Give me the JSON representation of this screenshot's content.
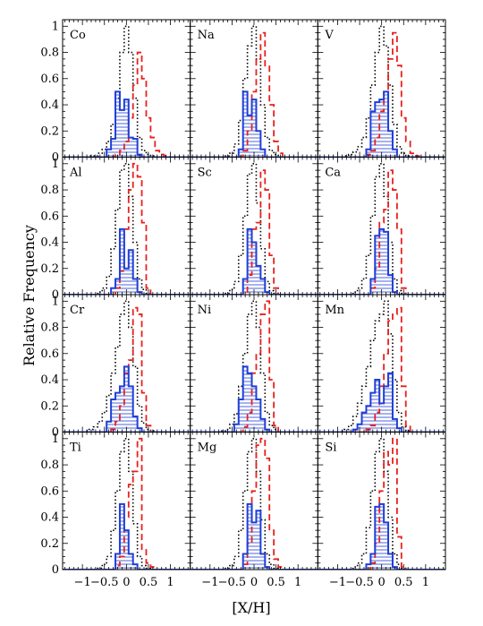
{
  "figure": {
    "ylabel": "Relative Frequency",
    "xlabel": "[X/H]"
  },
  "colors": {
    "dotted": "#000000",
    "dashed": "#e8201c",
    "solid": "#1f3fd6",
    "hatch": "#1f3fd6",
    "frame": "#000000"
  },
  "chart_data": {
    "type": "histogram-grid",
    "rows": 4,
    "cols": 3,
    "xlim": [
      -1.45,
      1.45
    ],
    "ylim": [
      0,
      1.05
    ],
    "x_ticks": [
      -1,
      -0.5,
      0,
      0.5,
      1
    ],
    "x_tick_labels": [
      "−1",
      "−0.5",
      "0",
      "0.5",
      "1"
    ],
    "y_ticks": [
      0,
      0.2,
      0.4,
      0.6,
      0.8,
      1
    ],
    "y_tick_labels": [
      "0",
      "0.2",
      "0.4",
      "0.6",
      "0.8",
      "1"
    ],
    "bin_edges": [
      -1.45,
      -1.35,
      -1.25,
      -1.15,
      -1.05,
      -0.95,
      -0.85,
      -0.75,
      -0.65,
      -0.55,
      -0.45,
      -0.35,
      -0.25,
      -0.15,
      -0.05,
      0.05,
      0.15,
      0.25,
      0.35,
      0.45,
      0.55,
      0.65,
      0.75,
      0.85,
      0.95,
      1.05,
      1.15,
      1.25,
      1.35,
      1.45
    ],
    "panels": [
      {
        "label": "Co",
        "dotted": [
          0,
          0,
          0,
          0,
          0,
          0,
          0.01,
          0.01,
          0.03,
          0.06,
          0.12,
          0.25,
          0.45,
          0.8,
          1.0,
          0.8,
          0.45,
          0.15,
          0.05,
          0.02,
          0.01,
          0,
          0,
          0,
          0,
          0,
          0,
          0,
          0
        ],
        "dashed": [
          0,
          0,
          0,
          0,
          0,
          0,
          0,
          0,
          0,
          0,
          0,
          0,
          0.02,
          0.05,
          0.12,
          0.3,
          0.55,
          0.8,
          0.6,
          0.3,
          0.15,
          0.05,
          0.02,
          0.01,
          0,
          0,
          0,
          0,
          0
        ],
        "solid": [
          0,
          0,
          0,
          0,
          0,
          0,
          0,
          0,
          0,
          0,
          0.06,
          0.14,
          0.5,
          0.36,
          0.44,
          0.15,
          0.14,
          0.02,
          0,
          0,
          0,
          0,
          0,
          0,
          0,
          0,
          0,
          0,
          0
        ]
      },
      {
        "label": "Na",
        "dotted": [
          0,
          0,
          0,
          0,
          0,
          0,
          0,
          0,
          0.01,
          0.03,
          0.1,
          0.28,
          0.6,
          0.85,
          1.0,
          0.75,
          0.4,
          0.15,
          0.05,
          0.02,
          0,
          0,
          0,
          0,
          0,
          0,
          0,
          0,
          0
        ],
        "dashed": [
          0,
          0,
          0,
          0,
          0,
          0,
          0,
          0,
          0,
          0,
          0,
          0,
          0.05,
          0.2,
          0.5,
          0.75,
          0.95,
          0.7,
          0.4,
          0.12,
          0.03,
          0,
          0,
          0,
          0,
          0,
          0,
          0,
          0
        ],
        "solid": [
          0,
          0,
          0,
          0,
          0,
          0,
          0,
          0,
          0,
          0,
          0,
          0.06,
          0.5,
          0.32,
          0.44,
          0.2,
          0.06,
          0,
          0,
          0,
          0,
          0,
          0,
          0,
          0,
          0,
          0,
          0,
          0
        ]
      },
      {
        "label": "V",
        "dotted": [
          0,
          0,
          0,
          0,
          0,
          0,
          0.01,
          0.02,
          0.04,
          0.08,
          0.15,
          0.3,
          0.55,
          0.8,
          1.0,
          0.85,
          0.55,
          0.25,
          0.08,
          0.03,
          0.01,
          0,
          0,
          0,
          0,
          0,
          0,
          0,
          0
        ],
        "dashed": [
          0,
          0,
          0,
          0,
          0,
          0,
          0,
          0,
          0,
          0,
          0,
          0.02,
          0.05,
          0.15,
          0.35,
          0.5,
          0.75,
          0.95,
          0.7,
          0.3,
          0.12,
          0.03,
          0.01,
          0,
          0,
          0,
          0,
          0,
          0
        ],
        "solid": [
          0,
          0,
          0,
          0,
          0,
          0,
          0,
          0,
          0,
          0,
          0,
          0.06,
          0.35,
          0.42,
          0.44,
          0.5,
          0.2,
          0.06,
          0,
          0,
          0,
          0,
          0,
          0,
          0,
          0,
          0,
          0,
          0
        ]
      },
      {
        "label": "Al",
        "dotted": [
          0,
          0,
          0,
          0,
          0,
          0,
          0,
          0,
          0.02,
          0.05,
          0.14,
          0.35,
          0.65,
          0.95,
          1.0,
          0.75,
          0.4,
          0.12,
          0.04,
          0.01,
          0,
          0,
          0,
          0,
          0,
          0,
          0,
          0,
          0
        ],
        "dashed": [
          0,
          0,
          0,
          0,
          0,
          0,
          0,
          0,
          0,
          0,
          0,
          0,
          0.05,
          0.18,
          0.5,
          0.8,
          1.0,
          0.9,
          0.55,
          0.05,
          0,
          0,
          0,
          0,
          0,
          0,
          0,
          0,
          0
        ],
        "solid": [
          0,
          0,
          0,
          0,
          0,
          0,
          0,
          0,
          0,
          0,
          0,
          0.05,
          0.12,
          0.5,
          0.2,
          0.34,
          0.12,
          0.02,
          0,
          0,
          0,
          0,
          0,
          0,
          0,
          0,
          0,
          0,
          0
        ]
      },
      {
        "label": "Sc",
        "dotted": [
          0,
          0,
          0,
          0,
          0,
          0,
          0,
          0,
          0.01,
          0.04,
          0.1,
          0.3,
          0.6,
          0.92,
          1.0,
          0.7,
          0.35,
          0.1,
          0.03,
          0.01,
          0,
          0,
          0,
          0,
          0,
          0,
          0,
          0,
          0
        ],
        "dashed": [
          0,
          0,
          0,
          0,
          0,
          0,
          0,
          0,
          0,
          0,
          0,
          0,
          0.02,
          0.15,
          0.5,
          0.55,
          0.95,
          0.8,
          0.3,
          0.05,
          0,
          0,
          0,
          0,
          0,
          0,
          0,
          0,
          0
        ],
        "solid": [
          0,
          0,
          0,
          0,
          0,
          0,
          0,
          0,
          0,
          0,
          0,
          0,
          0.12,
          0.5,
          0.4,
          0.22,
          0.12,
          0.02,
          0,
          0,
          0,
          0,
          0,
          0,
          0,
          0,
          0,
          0,
          0
        ]
      },
      {
        "label": "Ca",
        "dotted": [
          0,
          0,
          0,
          0,
          0,
          0,
          0,
          0,
          0.02,
          0.05,
          0.12,
          0.3,
          0.6,
          0.9,
          1.0,
          0.75,
          0.4,
          0.12,
          0.03,
          0.01,
          0,
          0,
          0,
          0,
          0,
          0,
          0,
          0,
          0
        ],
        "dashed": [
          0,
          0,
          0,
          0,
          0,
          0,
          0,
          0,
          0,
          0,
          0,
          0,
          0.05,
          0.2,
          0.55,
          0.65,
          0.95,
          0.8,
          0.5,
          0.05,
          0,
          0,
          0,
          0,
          0,
          0,
          0,
          0,
          0
        ],
        "solid": [
          0,
          0,
          0,
          0,
          0,
          0,
          0,
          0,
          0,
          0,
          0,
          0,
          0.12,
          0.45,
          0.5,
          0.48,
          0.15,
          0.02,
          0,
          0,
          0,
          0,
          0,
          0,
          0,
          0,
          0,
          0,
          0
        ]
      },
      {
        "label": "Cr",
        "dotted": [
          0,
          0,
          0,
          0,
          0,
          0.01,
          0.02,
          0.04,
          0.08,
          0.15,
          0.28,
          0.45,
          0.65,
          0.9,
          1.0,
          0.8,
          0.5,
          0.2,
          0.07,
          0.02,
          0.01,
          0,
          0,
          0,
          0,
          0,
          0,
          0,
          0
        ],
        "dashed": [
          0,
          0,
          0,
          0,
          0,
          0,
          0,
          0,
          0,
          0,
          0,
          0.02,
          0.08,
          0.2,
          0.45,
          0.55,
          0.95,
          0.9,
          0.3,
          0.05,
          0,
          0,
          0,
          0,
          0,
          0,
          0,
          0,
          0
        ],
        "solid": [
          0,
          0,
          0,
          0,
          0,
          0,
          0,
          0,
          0,
          0,
          0.08,
          0.25,
          0.3,
          0.35,
          0.5,
          0.35,
          0.12,
          0.03,
          0,
          0,
          0,
          0,
          0,
          0,
          0,
          0,
          0,
          0,
          0
        ]
      },
      {
        "label": "Ni",
        "dotted": [
          0,
          0,
          0,
          0,
          0,
          0,
          0,
          0.01,
          0.02,
          0.06,
          0.14,
          0.35,
          0.6,
          0.9,
          1.0,
          0.8,
          0.45,
          0.15,
          0.05,
          0.02,
          0,
          0,
          0,
          0,
          0,
          0,
          0,
          0,
          0
        ],
        "dashed": [
          0,
          0,
          0,
          0,
          0,
          0,
          0,
          0,
          0,
          0,
          0,
          0,
          0.04,
          0.15,
          0.45,
          0.6,
          0.9,
          1.0,
          0.4,
          0.05,
          0,
          0,
          0,
          0,
          0,
          0,
          0,
          0,
          0
        ],
        "solid": [
          0,
          0,
          0,
          0,
          0,
          0,
          0,
          0,
          0,
          0,
          0.06,
          0.25,
          0.5,
          0.45,
          0.35,
          0.25,
          0.1,
          0.02,
          0,
          0,
          0,
          0,
          0,
          0,
          0,
          0,
          0,
          0,
          0
        ]
      },
      {
        "label": "Mn",
        "dotted": [
          0,
          0,
          0,
          0,
          0,
          0.01,
          0.02,
          0.05,
          0.12,
          0.22,
          0.35,
          0.5,
          0.7,
          0.85,
          0.9,
          1.0,
          0.75,
          0.4,
          0.15,
          0.04,
          0.01,
          0,
          0,
          0,
          0,
          0,
          0,
          0,
          0
        ],
        "dashed": [
          0,
          0,
          0,
          0,
          0,
          0,
          0,
          0,
          0,
          0,
          0,
          0.02,
          0.05,
          0.15,
          0.35,
          0.6,
          0.85,
          0.9,
          0.95,
          0.35,
          0.05,
          0,
          0,
          0,
          0,
          0,
          0,
          0,
          0
        ],
        "solid": [
          0,
          0,
          0,
          0,
          0,
          0,
          0,
          0,
          0.02,
          0.06,
          0.15,
          0.2,
          0.3,
          0.4,
          0.22,
          0.35,
          0.45,
          0.1,
          0.03,
          0,
          0,
          0,
          0,
          0,
          0,
          0,
          0,
          0,
          0
        ]
      },
      {
        "label": "Ti",
        "dotted": [
          0,
          0,
          0,
          0,
          0,
          0,
          0,
          0,
          0.01,
          0.04,
          0.1,
          0.3,
          0.6,
          0.9,
          1.0,
          0.75,
          0.35,
          0.1,
          0.03,
          0.01,
          0,
          0,
          0,
          0,
          0,
          0,
          0,
          0,
          0
        ],
        "dashed": [
          0,
          0,
          0,
          0,
          0,
          0,
          0,
          0,
          0,
          0,
          0,
          0,
          0.03,
          0.1,
          0.4,
          0.65,
          0.75,
          1.0,
          0.15,
          0.05,
          0.02,
          0,
          0,
          0,
          0,
          0,
          0,
          0,
          0
        ],
        "solid": [
          0,
          0,
          0,
          0,
          0,
          0,
          0,
          0,
          0,
          0,
          0,
          0,
          0.12,
          0.5,
          0.3,
          0.12,
          0.04,
          0,
          0,
          0,
          0,
          0,
          0,
          0,
          0,
          0,
          0,
          0,
          0
        ]
      },
      {
        "label": "Mg",
        "dotted": [
          0,
          0,
          0,
          0,
          0,
          0,
          0,
          0,
          0.01,
          0.03,
          0.1,
          0.3,
          0.6,
          0.9,
          1.0,
          0.75,
          0.38,
          0.12,
          0.04,
          0.01,
          0,
          0,
          0,
          0,
          0,
          0,
          0,
          0,
          0
        ],
        "dashed": [
          0,
          0,
          0,
          0,
          0,
          0,
          0,
          0,
          0,
          0,
          0,
          0,
          0.04,
          0.2,
          0.6,
          0.95,
          1.0,
          0.85,
          0.3,
          0.08,
          0.02,
          0,
          0,
          0,
          0,
          0,
          0,
          0,
          0
        ],
        "solid": [
          0,
          0,
          0,
          0,
          0,
          0,
          0,
          0,
          0,
          0,
          0,
          0,
          0.12,
          0.5,
          0.36,
          0.45,
          0.12,
          0.02,
          0,
          0,
          0,
          0,
          0,
          0,
          0,
          0,
          0,
          0,
          0
        ]
      },
      {
        "label": "Si",
        "dotted": [
          0,
          0,
          0,
          0,
          0,
          0,
          0,
          0,
          0.02,
          0.05,
          0.12,
          0.32,
          0.6,
          0.9,
          1.0,
          0.75,
          0.4,
          0.12,
          0.04,
          0.01,
          0,
          0,
          0,
          0,
          0,
          0,
          0,
          0,
          0
        ],
        "dashed": [
          0,
          0,
          0,
          0,
          0,
          0,
          0,
          0,
          0,
          0,
          0,
          0,
          0.05,
          0.2,
          0.6,
          0.9,
          0.8,
          1.0,
          0.25,
          0.02,
          0,
          0,
          0,
          0,
          0,
          0,
          0,
          0,
          0
        ],
        "solid": [
          0,
          0,
          0,
          0,
          0,
          0,
          0,
          0,
          0,
          0,
          0,
          0.04,
          0.12,
          0.48,
          0.5,
          0.36,
          0.12,
          0.02,
          0,
          0,
          0,
          0,
          0,
          0,
          0,
          0,
          0,
          0,
          0
        ]
      }
    ]
  }
}
